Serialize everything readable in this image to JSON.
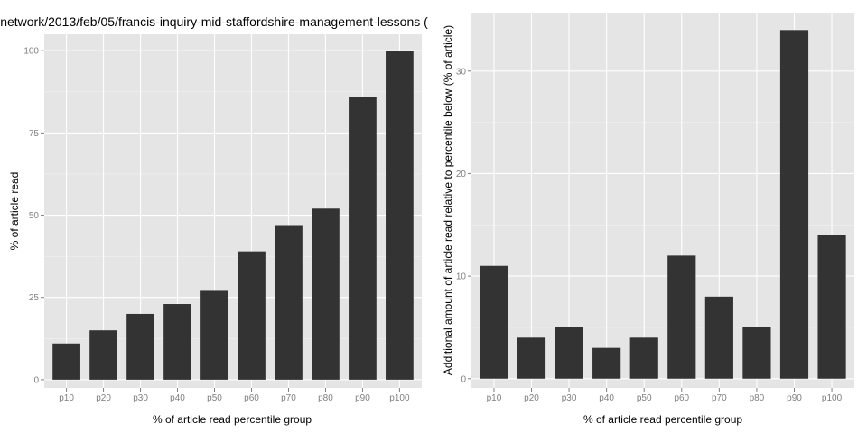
{
  "chart_data": [
    {
      "type": "bar",
      "title": "network/2013/feb/05/francis-inquiry-mid-staffordshire-management-lessons (",
      "xlabel": "% of article read percentile group",
      "ylabel": "% of article read",
      "categories": [
        "p10",
        "p20",
        "p30",
        "p40",
        "p50",
        "p60",
        "p70",
        "p80",
        "p90",
        "p100"
      ],
      "values": [
        11,
        15,
        20,
        23,
        27,
        39,
        47,
        52,
        86,
        100
      ],
      "ylim": [
        -2.5,
        105
      ],
      "yticks": [
        0,
        25,
        50,
        75,
        100
      ],
      "grid": true,
      "bar_color": "#333333",
      "panel_color": "#e5e5e5"
    },
    {
      "type": "bar",
      "title": "",
      "xlabel": "% of article read percentile group",
      "ylabel": "Additional amount of article read relative to percentile below (% of article)",
      "categories": [
        "p10",
        "p20",
        "p30",
        "p40",
        "p50",
        "p60",
        "p70",
        "p80",
        "p90",
        "p100"
      ],
      "values": [
        11,
        4,
        5,
        3,
        4,
        12,
        8,
        5,
        34,
        14
      ],
      "ylim": [
        -0.9,
        35.7
      ],
      "yticks": [
        0,
        10,
        20,
        30
      ],
      "grid": true,
      "bar_color": "#333333",
      "panel_color": "#e5e5e5"
    }
  ]
}
